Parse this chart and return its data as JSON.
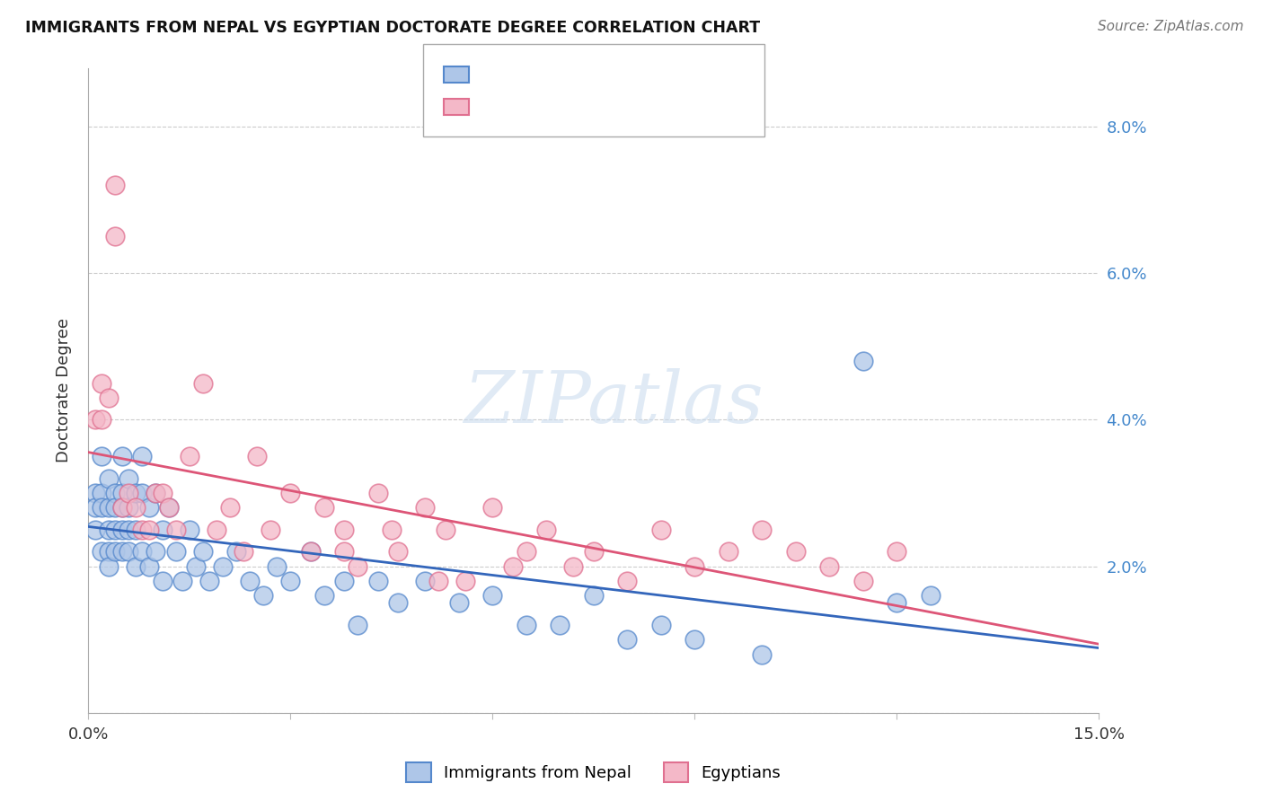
{
  "title": "IMMIGRANTS FROM NEPAL VS EGYPTIAN DOCTORATE DEGREE CORRELATION CHART",
  "source": "Source: ZipAtlas.com",
  "ylabel": "Doctorate Degree",
  "xlim": [
    0,
    0.15
  ],
  "ylim": [
    0,
    0.088
  ],
  "xticks": [
    0.0,
    0.03,
    0.06,
    0.09,
    0.12,
    0.15
  ],
  "yticks": [
    0.0,
    0.02,
    0.04,
    0.06,
    0.08
  ],
  "ytick_labels": [
    "",
    "2.0%",
    "4.0%",
    "6.0%",
    "8.0%"
  ],
  "nepal_color": "#aec6e8",
  "egypt_color": "#f4b8c8",
  "nepal_edge_color": "#5588cc",
  "egypt_edge_color": "#e07090",
  "nepal_line_color": "#3366bb",
  "egypt_line_color": "#dd5577",
  "watermark": "ZIPatlas",
  "legend_label_nepal": "Immigrants from Nepal",
  "legend_label_egypt": "Egyptians",
  "nepal_x": [
    0.001,
    0.001,
    0.001,
    0.002,
    0.002,
    0.002,
    0.002,
    0.003,
    0.003,
    0.003,
    0.003,
    0.003,
    0.004,
    0.004,
    0.004,
    0.004,
    0.005,
    0.005,
    0.005,
    0.005,
    0.005,
    0.006,
    0.006,
    0.006,
    0.006,
    0.007,
    0.007,
    0.007,
    0.008,
    0.008,
    0.008,
    0.009,
    0.009,
    0.01,
    0.01,
    0.011,
    0.011,
    0.012,
    0.013,
    0.014,
    0.015,
    0.016,
    0.017,
    0.018,
    0.02,
    0.022,
    0.024,
    0.026,
    0.028,
    0.03,
    0.033,
    0.035,
    0.038,
    0.04,
    0.043,
    0.046,
    0.05,
    0.055,
    0.06,
    0.065,
    0.07,
    0.075,
    0.08,
    0.085,
    0.09,
    0.1,
    0.115,
    0.12,
    0.125
  ],
  "nepal_y": [
    0.03,
    0.028,
    0.025,
    0.035,
    0.03,
    0.028,
    0.022,
    0.032,
    0.028,
    0.025,
    0.022,
    0.02,
    0.03,
    0.028,
    0.025,
    0.022,
    0.035,
    0.03,
    0.028,
    0.025,
    0.022,
    0.032,
    0.028,
    0.025,
    0.022,
    0.03,
    0.025,
    0.02,
    0.035,
    0.03,
    0.022,
    0.028,
    0.02,
    0.03,
    0.022,
    0.025,
    0.018,
    0.028,
    0.022,
    0.018,
    0.025,
    0.02,
    0.022,
    0.018,
    0.02,
    0.022,
    0.018,
    0.016,
    0.02,
    0.018,
    0.022,
    0.016,
    0.018,
    0.012,
    0.018,
    0.015,
    0.018,
    0.015,
    0.016,
    0.012,
    0.012,
    0.016,
    0.01,
    0.012,
    0.01,
    0.008,
    0.048,
    0.015,
    0.016
  ],
  "egypt_x": [
    0.001,
    0.002,
    0.002,
    0.003,
    0.004,
    0.004,
    0.005,
    0.006,
    0.007,
    0.008,
    0.009,
    0.01,
    0.011,
    0.012,
    0.013,
    0.015,
    0.017,
    0.019,
    0.021,
    0.023,
    0.025,
    0.027,
    0.03,
    0.033,
    0.035,
    0.038,
    0.04,
    0.043,
    0.046,
    0.05,
    0.053,
    0.056,
    0.06,
    0.063,
    0.068,
    0.072,
    0.075,
    0.08,
    0.085,
    0.09,
    0.095,
    0.1,
    0.105,
    0.11,
    0.115,
    0.12,
    0.045,
    0.038,
    0.052,
    0.065
  ],
  "egypt_y": [
    0.04,
    0.04,
    0.045,
    0.043,
    0.072,
    0.065,
    0.028,
    0.03,
    0.028,
    0.025,
    0.025,
    0.03,
    0.03,
    0.028,
    0.025,
    0.035,
    0.045,
    0.025,
    0.028,
    0.022,
    0.035,
    0.025,
    0.03,
    0.022,
    0.028,
    0.025,
    0.02,
    0.03,
    0.022,
    0.028,
    0.025,
    0.018,
    0.028,
    0.02,
    0.025,
    0.02,
    0.022,
    0.018,
    0.025,
    0.02,
    0.022,
    0.025,
    0.022,
    0.02,
    0.018,
    0.022,
    0.025,
    0.022,
    0.018,
    0.022
  ]
}
